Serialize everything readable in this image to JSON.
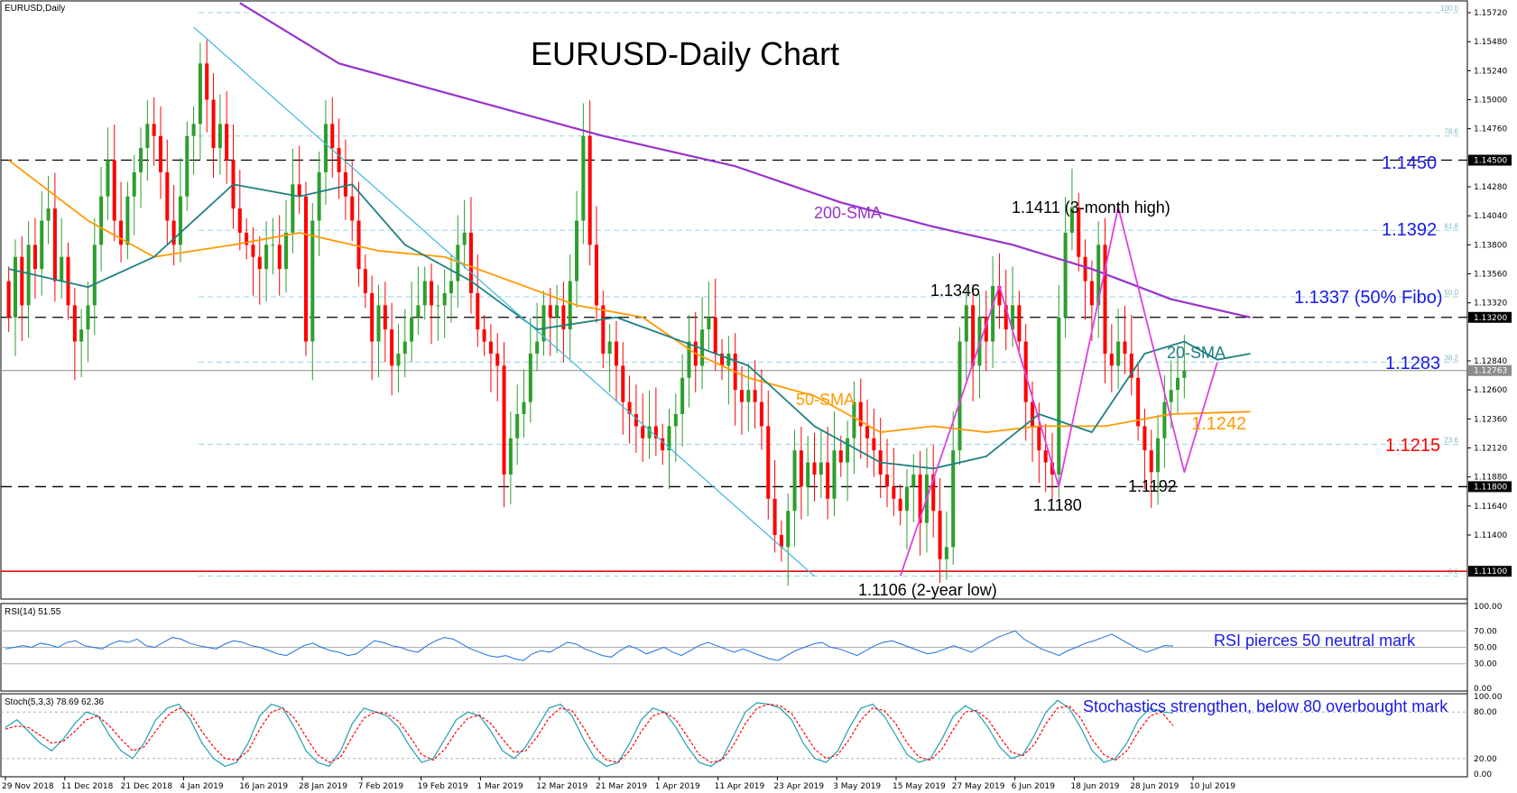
{
  "header": {
    "symbol_label": "EURUSD,Daily",
    "title": "EURUSD-Daily Chart"
  },
  "colors": {
    "bull": "#2e9e2e",
    "bear": "#ff0000",
    "sma200": "#9932cc",
    "sma50": "#ff9900",
    "sma20": "#1f8080",
    "trend_cyan": "#3fb6e0",
    "zigzag": "#e040e0",
    "label_blue": "#1a1ae6",
    "label_red": "#ff0000",
    "label_orange": "#ff9900",
    "label_teal": "#1f8080",
    "label_purple": "#9932cc",
    "rsi": "#1e6fd9",
    "stoch_main": "#20a0b0",
    "stoch_signal": "#ff0000"
  },
  "chart_data": {
    "type": "candlestick",
    "title": "EURUSD-Daily Chart",
    "ylim": [
      1.1096,
      1.1575
    ],
    "x_tick_labels": [
      "29 Nov 2018",
      "11 Dec 2018",
      "21 Dec 2018",
      "4 Jan 2019",
      "16 Jan 2019",
      "28 Jan 2019",
      "7 Feb 2019",
      "19 Feb 2019",
      "1 Mar 2019",
      "12 Mar 2019",
      "21 Mar 2019",
      "1 Apr 2019",
      "11 Apr 2019",
      "23 Apr 2019",
      "3 May 2019",
      "15 May 2019",
      "27 May 2019",
      "6 Jun 2019",
      "18 Jun 2019",
      "28 Jun 2019",
      "10 Jul 2019"
    ],
    "y_tick_labels": [
      "1.15720",
      "1.15480",
      "1.15240",
      "1.15000",
      "1.14760",
      "1.14280",
      "1.14040",
      "1.13800",
      "1.13560",
      "1.13320",
      "1.12840",
      "1.12600",
      "1.12360",
      "1.12120",
      "1.11880",
      "1.11640",
      "1.11400"
    ],
    "price_tags": [
      {
        "label": "1.14500",
        "value": 1.145
      },
      {
        "label": "1.13200",
        "value": 1.132
      },
      {
        "label": "1.12763",
        "value": 1.1276
      },
      {
        "label": "1.11800",
        "value": 1.118
      },
      {
        "label": "1.11100",
        "value": 1.111
      }
    ],
    "fib_labels": [
      "100.0",
      "78.6",
      "61.8",
      "50.0",
      "38.2",
      "23.6",
      "0.0"
    ],
    "fib_levels": [
      1.1572,
      1.147,
      1.1392,
      1.1337,
      1.1283,
      1.1215,
      1.1106
    ],
    "horizontal_dashed": [
      1.145,
      1.132,
      1.118
    ],
    "support_line": 1.111,
    "last_price_line": 1.1276,
    "closes": [
      1.132,
      1.137,
      1.133,
      1.138,
      1.136,
      1.14,
      1.141,
      1.135,
      1.137,
      1.133,
      1.13,
      1.131,
      1.133,
      1.138,
      1.142,
      1.145,
      1.14,
      1.138,
      1.142,
      1.144,
      1.146,
      1.148,
      1.147,
      1.144,
      1.14,
      1.138,
      1.142,
      1.147,
      1.148,
      1.153,
      1.15,
      1.146,
      1.148,
      1.145,
      1.141,
      1.139,
      1.138,
      1.137,
      1.136,
      1.138,
      1.138,
      1.136,
      1.139,
      1.143,
      1.142,
      1.13,
      1.14,
      1.144,
      1.148,
      1.146,
      1.144,
      1.142,
      1.14,
      1.136,
      1.134,
      1.13,
      1.133,
      1.131,
      1.128,
      1.129,
      1.13,
      1.132,
      1.133,
      1.135,
      1.133,
      1.133,
      1.134,
      1.135,
      1.138,
      1.139,
      1.134,
      1.131,
      1.13,
      1.129,
      1.128,
      1.119,
      1.122,
      1.124,
      1.125,
      1.129,
      1.13,
      1.133,
      1.132,
      1.133,
      1.131,
      1.135,
      1.14,
      1.147,
      1.138,
      1.133,
      1.129,
      1.13,
      1.128,
      1.125,
      1.124,
      1.123,
      1.122,
      1.123,
      1.122,
      1.121,
      1.123,
      1.124,
      1.127,
      1.13,
      1.128,
      1.131,
      1.132,
      1.129,
      1.128,
      1.129,
      1.126,
      1.125,
      1.126,
      1.125,
      1.123,
      1.117,
      1.114,
      1.113,
      1.116,
      1.121,
      1.118,
      1.12,
      1.119,
      1.12,
      1.117,
      1.121,
      1.12,
      1.122,
      1.125,
      1.123,
      1.122,
      1.121,
      1.119,
      1.118,
      1.117,
      1.116,
      1.118,
      1.119,
      1.115,
      1.119,
      1.116,
      1.112,
      1.113,
      1.121,
      1.13,
      1.133,
      1.128,
      1.132,
      1.13,
      1.1346,
      1.133,
      1.131,
      1.133,
      1.13,
      1.125,
      1.123,
      1.121,
      1.12,
      1.119,
      1.132,
      1.139,
      1.1411,
      1.137,
      1.135,
      1.133,
      1.138,
      1.129,
      1.128,
      1.13,
      1.129,
      1.127,
      1.123,
      1.121,
      1.1192,
      1.122,
      1.125,
      1.126,
      1.127,
      1.1276
    ],
    "sma20_path": [
      [
        0,
        1.136
      ],
      [
        12,
        1.1345
      ],
      [
        22,
        1.137
      ],
      [
        34,
        1.143
      ],
      [
        44,
        1.142
      ],
      [
        52,
        1.143
      ],
      [
        60,
        1.138
      ],
      [
        70,
        1.135
      ],
      [
        80,
        1.131
      ],
      [
        92,
        1.132
      ],
      [
        102,
        1.13
      ],
      [
        112,
        1.128
      ],
      [
        122,
        1.123
      ],
      [
        132,
        1.12
      ],
      [
        140,
        1.1195
      ],
      [
        148,
        1.1205
      ],
      [
        156,
        1.124
      ],
      [
        164,
        1.1225
      ],
      [
        172,
        1.129
      ],
      [
        178,
        1.13
      ],
      [
        183,
        1.1285
      ],
      [
        188,
        1.129
      ]
    ],
    "sma50_path": [
      [
        0,
        1.145
      ],
      [
        12,
        1.14
      ],
      [
        22,
        1.137
      ],
      [
        34,
        1.138
      ],
      [
        44,
        1.139
      ],
      [
        56,
        1.1375
      ],
      [
        66,
        1.137
      ],
      [
        76,
        1.135
      ],
      [
        86,
        1.133
      ],
      [
        96,
        1.132
      ],
      [
        104,
        1.129
      ],
      [
        112,
        1.127
      ],
      [
        122,
        1.1255
      ],
      [
        132,
        1.1225
      ],
      [
        140,
        1.123
      ],
      [
        148,
        1.1225
      ],
      [
        156,
        1.123
      ],
      [
        166,
        1.123
      ],
      [
        176,
        1.124
      ],
      [
        188,
        1.1242
      ]
    ],
    "sma200_path": [
      [
        35,
        1.158
      ],
      [
        50,
        1.153
      ],
      [
        70,
        1.15
      ],
      [
        90,
        1.147
      ],
      [
        110,
        1.1445
      ],
      [
        126,
        1.1415
      ],
      [
        140,
        1.1395
      ],
      [
        152,
        1.138
      ],
      [
        164,
        1.136
      ],
      [
        176,
        1.1335
      ],
      [
        188,
        1.132
      ]
    ],
    "trendline": [
      [
        28,
        1.156
      ],
      [
        122,
        1.1106
      ]
    ],
    "zigzag": [
      [
        135,
        1.1106
      ],
      [
        150,
        1.1346
      ],
      [
        159,
        1.118
      ],
      [
        168,
        1.1411
      ],
      [
        178,
        1.1192
      ],
      [
        183,
        1.1283
      ]
    ],
    "annotations": [
      {
        "text": "1.1450",
        "color": "label_blue",
        "value": 1.145
      },
      {
        "text": "1.1392",
        "color": "label_blue",
        "value": 1.1392
      },
      {
        "text": "1.1337 (50% Fibo)",
        "color": "label_blue",
        "value": 1.1337
      },
      {
        "text": "1.1283",
        "color": "label_blue",
        "value": 1.1283
      },
      {
        "text": "1.1215",
        "color": "label_red",
        "value": 1.1215
      },
      {
        "text": "1.1242",
        "color": "label_orange",
        "value": 1.1242
      },
      {
        "text": "200-SMA",
        "color": "label_purple"
      },
      {
        "text": "50-SMA",
        "color": "label_orange"
      },
      {
        "text": "20-SMA",
        "color": "label_teal"
      },
      {
        "text": "1.1411 (3-month high)",
        "color": "text"
      },
      {
        "text": "1.1346",
        "color": "text"
      },
      {
        "text": "1.1180",
        "color": "text"
      },
      {
        "text": "1.1192",
        "color": "text"
      },
      {
        "text": "1.1106 (2-year low)",
        "color": "text"
      }
    ],
    "rsi": {
      "label": "RSI(14) 51.55",
      "levels": [
        "100.00",
        "70.00",
        "50.00",
        "30.00",
        "0.00"
      ],
      "note": "RSI pierces 50 neutral mark",
      "values": [
        48,
        50,
        52,
        50,
        55,
        53,
        50,
        56,
        58,
        52,
        50,
        48,
        54,
        58,
        56,
        60,
        52,
        50,
        56,
        62,
        60,
        55,
        52,
        50,
        48,
        54,
        58,
        56,
        52,
        50,
        46,
        42,
        40,
        46,
        52,
        55,
        50,
        46,
        44,
        40,
        42,
        50,
        58,
        56,
        52,
        50,
        46,
        44,
        52,
        58,
        62,
        60,
        54,
        48,
        44,
        40,
        38,
        40,
        36,
        34,
        42,
        46,
        44,
        50,
        56,
        54,
        48,
        44,
        40,
        38,
        46,
        52,
        48,
        42,
        46,
        50,
        44,
        40,
        46,
        52,
        56,
        52,
        48,
        44,
        48,
        44,
        40,
        36,
        34,
        40,
        46,
        50,
        54,
        56,
        50,
        48,
        44,
        40,
        46,
        52,
        56,
        58,
        54,
        50,
        46,
        42,
        44,
        48,
        52,
        48,
        44,
        50,
        56,
        62,
        66,
        70,
        60,
        54,
        48,
        44,
        40,
        46,
        50,
        55,
        58,
        62,
        66,
        60,
        54,
        48,
        44,
        48,
        52,
        51.55
      ]
    },
    "stoch": {
      "label": "Stoch(5,3,3) 78.69 62.36",
      "levels": [
        "100.00",
        "80.00",
        "20.00",
        "0.00"
      ],
      "note": "Stochastics strengthen, below 80 overbought mark",
      "main": [
        60,
        70,
        55,
        40,
        30,
        45,
        65,
        80,
        75,
        50,
        30,
        20,
        40,
        70,
        85,
        90,
        70,
        40,
        20,
        10,
        15,
        40,
        75,
        90,
        85,
        60,
        30,
        15,
        10,
        30,
        65,
        85,
        80,
        75,
        60,
        35,
        15,
        20,
        45,
        70,
        80,
        75,
        55,
        30,
        20,
        35,
        60,
        85,
        90,
        75,
        45,
        20,
        10,
        15,
        40,
        70,
        85,
        80,
        60,
        35,
        15,
        10,
        20,
        50,
        80,
        92,
        90,
        85,
        70,
        40,
        20,
        15,
        30,
        60,
        85,
        90,
        75,
        50,
        25,
        15,
        20,
        45,
        75,
        88,
        80,
        60,
        35,
        20,
        25,
        50,
        80,
        95,
        85,
        60,
        30,
        15,
        20,
        40,
        70,
        85,
        80,
        78.69
      ],
      "signal": [
        58,
        62,
        60,
        50,
        40,
        42,
        55,
        70,
        75,
        62,
        45,
        30,
        35,
        55,
        75,
        85,
        78,
        55,
        35,
        20,
        18,
        30,
        58,
        80,
        85,
        72,
        48,
        25,
        15,
        22,
        48,
        72,
        80,
        78,
        68,
        48,
        25,
        18,
        32,
        55,
        72,
        76,
        65,
        45,
        28,
        30,
        48,
        72,
        85,
        82,
        60,
        35,
        18,
        15,
        30,
        55,
        75,
        80,
        70,
        48,
        25,
        15,
        18,
        38,
        65,
        85,
        90,
        88,
        78,
        55,
        32,
        20,
        25,
        45,
        70,
        85,
        82,
        65,
        40,
        22,
        18,
        32,
        58,
        80,
        82,
        70,
        48,
        28,
        24,
        38,
        65,
        85,
        88,
        72,
        45,
        25,
        18,
        30,
        55,
        75,
        80,
        62.36
      ]
    }
  }
}
